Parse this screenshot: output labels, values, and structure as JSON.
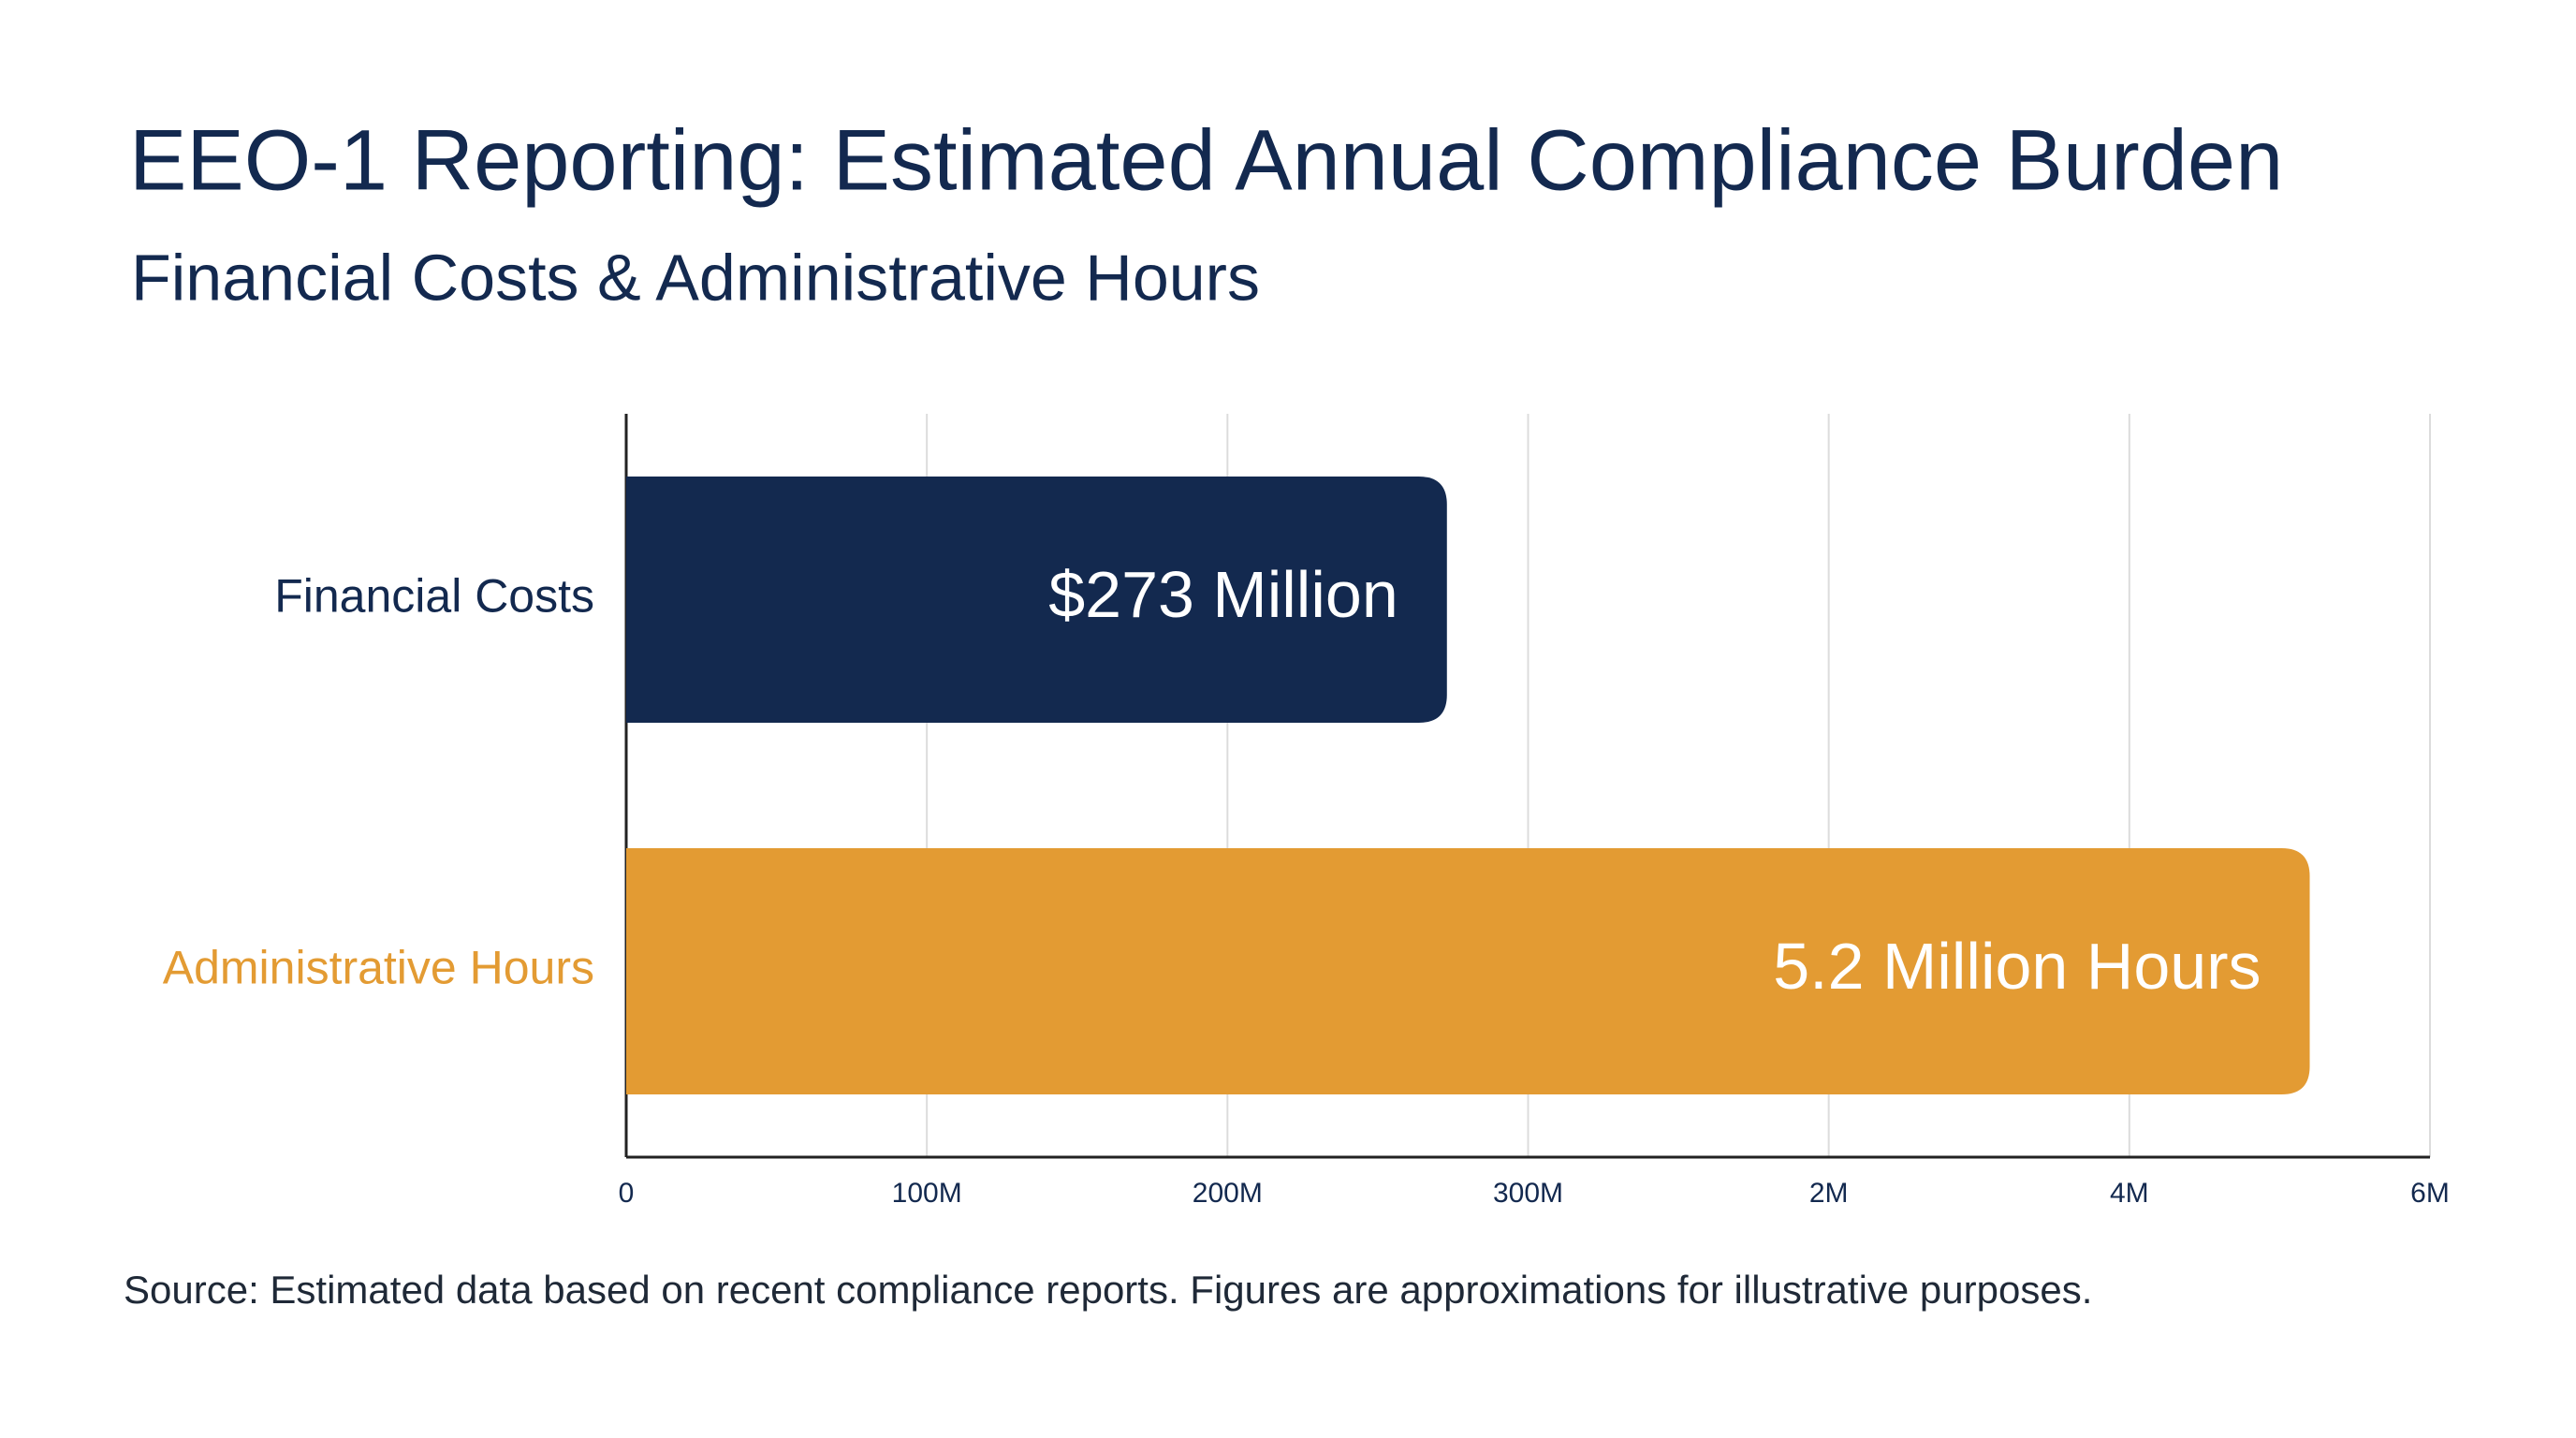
{
  "chart_data": {
    "type": "bar",
    "orientation": "horizontal",
    "title": "EEO-1 Reporting: Estimated Annual Compliance Burden",
    "subtitle": "Financial Costs & Administrative Hours",
    "categories": [
      "Financial Costs",
      "Administrative Hours"
    ],
    "values": [
      273000000,
      5200000
    ],
    "value_labels": [
      "$273 Million",
      "5.2 Million Hours"
    ],
    "colors": [
      "#13294f",
      "#e39b33"
    ],
    "axis": [
      "x",
      "x2"
    ],
    "xlim": [
      0,
      600000000
    ],
    "xticks": [
      0,
      {
        "value": 100000000,
        "label": "100M"
      },
      {
        "value": 200000000,
        "label": "200M"
      },
      {
        "value": 300000000,
        "label": "300M"
      }
    ],
    "x2lim": [
      -6000000,
      6000000
    ],
    "x2ticks": [
      {
        "value": 2000000,
        "label": "2M"
      },
      {
        "value": 4000000,
        "label": "4M"
      },
      {
        "value": 6000000,
        "label": "6M"
      }
    ],
    "grid": true,
    "source": "Source: Estimated data based on recent compliance reports. Figures are approximations for illustrative purposes."
  }
}
